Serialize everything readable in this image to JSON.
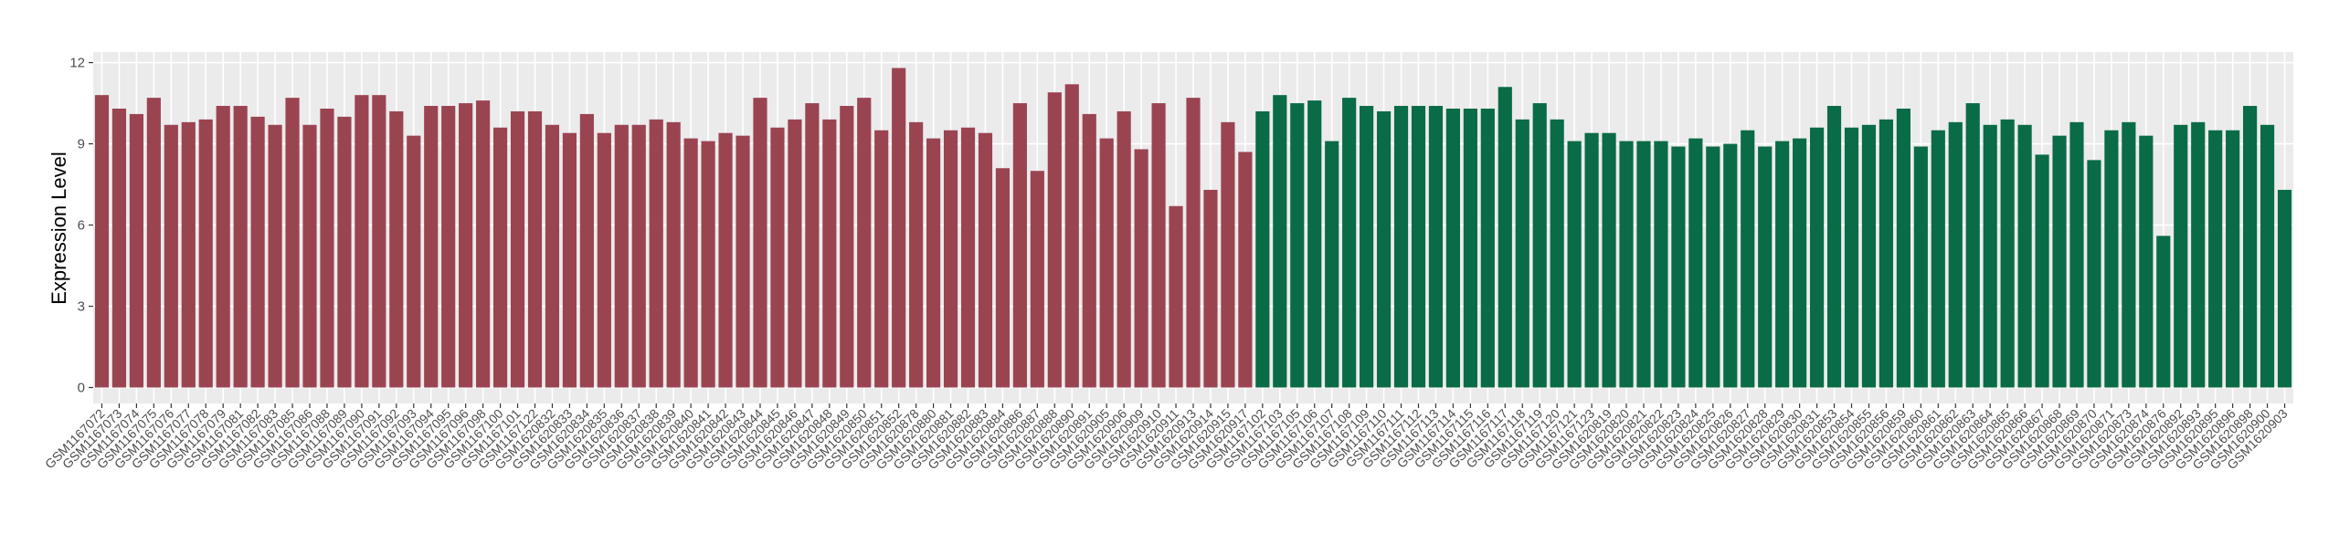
{
  "chart_data": {
    "type": "bar",
    "y_label": "Expression Level",
    "categories": [
      "GSM1167072",
      "GSM1167073",
      "GSM1167074",
      "GSM1167075",
      "GSM1167076",
      "GSM1167077",
      "GSM1167078",
      "GSM1167079",
      "GSM1167081",
      "GSM1167082",
      "GSM1167083",
      "GSM1167085",
      "GSM1167086",
      "GSM1167088",
      "GSM1167089",
      "GSM1167090",
      "GSM1167091",
      "GSM1167092",
      "GSM1167093",
      "GSM1167094",
      "GSM1167095",
      "GSM1167096",
      "GSM1167098",
      "GSM1167100",
      "GSM1167101",
      "GSM1167122",
      "GSM1620832",
      "GSM1620833",
      "GSM1620834",
      "GSM1620835",
      "GSM1620836",
      "GSM1620837",
      "GSM1620838",
      "GSM1620839",
      "GSM1620840",
      "GSM1620841",
      "GSM1620842",
      "GSM1620843",
      "GSM1620844",
      "GSM1620845",
      "GSM1620846",
      "GSM1620847",
      "GSM1620848",
      "GSM1620849",
      "GSM1620850",
      "GSM1620851",
      "GSM1620852",
      "GSM1620878",
      "GSM1620880",
      "GSM1620881",
      "GSM1620882",
      "GSM1620883",
      "GSM1620884",
      "GSM1620886",
      "GSM1620887",
      "GSM1620888",
      "GSM1620890",
      "GSM1620891",
      "GSM1620905",
      "GSM1620906",
      "GSM1620909",
      "GSM1620910",
      "GSM1620911",
      "GSM1620913",
      "GSM1620914",
      "GSM1620915",
      "GSM1620917",
      "GSM1167102",
      "GSM1167103",
      "GSM1167105",
      "GSM1167106",
      "GSM1167107",
      "GSM1167108",
      "GSM1167109",
      "GSM1167110",
      "GSM1167111",
      "GSM1167112",
      "GSM1167113",
      "GSM1167114",
      "GSM1167115",
      "GSM1167116",
      "GSM1167117",
      "GSM1167118",
      "GSM1167119",
      "GSM1167120",
      "GSM1167121",
      "GSM1167123",
      "GSM1620819",
      "GSM1620820",
      "GSM1620821",
      "GSM1620822",
      "GSM1620823",
      "GSM1620824",
      "GSM1620825",
      "GSM1620826",
      "GSM1620827",
      "GSM1620828",
      "GSM1620829",
      "GSM1620830",
      "GSM1620831",
      "GSM1620853",
      "GSM1620854",
      "GSM1620855",
      "GSM1620856",
      "GSM1620859",
      "GSM1620860",
      "GSM1620861",
      "GSM1620862",
      "GSM1620863",
      "GSM1620864",
      "GSM1620865",
      "GSM1620866",
      "GSM1620867",
      "GSM1620868",
      "GSM1620869",
      "GSM1620870",
      "GSM1620871",
      "GSM1620873",
      "GSM1620874",
      "GSM1620876",
      "GSM1620892",
      "GSM1620893",
      "GSM1620895",
      "GSM1620896",
      "GSM1620898",
      "GSM1620900",
      "GSM1620903"
    ],
    "values": [
      10.8,
      10.3,
      10.1,
      10.7,
      9.7,
      9.8,
      9.9,
      10.4,
      10.4,
      10.0,
      9.7,
      10.7,
      9.7,
      10.3,
      10.0,
      10.8,
      10.8,
      10.2,
      9.3,
      10.4,
      10.4,
      10.5,
      10.6,
      9.6,
      10.2,
      10.2,
      9.7,
      9.4,
      10.1,
      9.4,
      9.7,
      9.7,
      9.9,
      9.8,
      9.2,
      9.1,
      9.4,
      9.3,
      10.7,
      9.6,
      9.9,
      10.5,
      9.9,
      10.4,
      10.7,
      9.5,
      11.8,
      9.8,
      9.2,
      9.5,
      9.6,
      9.4,
      8.1,
      10.5,
      8.0,
      10.9,
      11.2,
      10.1,
      9.2,
      10.2,
      8.8,
      10.5,
      6.7,
      10.7,
      7.3,
      9.8,
      8.7,
      10.2,
      10.8,
      10.5,
      10.6,
      9.1,
      10.7,
      10.4,
      10.2,
      10.4,
      10.4,
      10.4,
      10.3,
      10.3,
      10.3,
      11.1,
      9.9,
      10.5,
      9.9,
      9.1,
      9.4,
      9.4,
      9.1,
      9.1,
      9.1,
      8.9,
      9.2,
      8.9,
      9.0,
      9.5,
      8.9,
      9.1,
      9.2,
      9.6,
      10.4,
      9.6,
      9.7,
      9.9,
      10.3,
      8.9,
      9.5,
      9.8,
      10.5,
      9.7,
      9.9,
      9.7,
      8.6,
      9.3,
      9.8,
      8.4,
      9.5,
      9.8,
      9.3,
      5.6,
      9.7,
      9.8,
      9.5,
      9.5,
      10.4,
      9.7,
      7.3
    ],
    "colors": [
      "#9b4451",
      "#9b4451",
      "#9b4451",
      "#9b4451",
      "#9b4451",
      "#9b4451",
      "#9b4451",
      "#9b4451",
      "#9b4451",
      "#9b4451",
      "#9b4451",
      "#9b4451",
      "#9b4451",
      "#9b4451",
      "#9b4451",
      "#9b4451",
      "#9b4451",
      "#9b4451",
      "#9b4451",
      "#9b4451",
      "#9b4451",
      "#9b4451",
      "#9b4451",
      "#9b4451",
      "#9b4451",
      "#9b4451",
      "#9b4451",
      "#9b4451",
      "#9b4451",
      "#9b4451",
      "#9b4451",
      "#9b4451",
      "#9b4451",
      "#9b4451",
      "#9b4451",
      "#9b4451",
      "#9b4451",
      "#9b4451",
      "#9b4451",
      "#9b4451",
      "#9b4451",
      "#9b4451",
      "#9b4451",
      "#9b4451",
      "#9b4451",
      "#9b4451",
      "#9b4451",
      "#9b4451",
      "#9b4451",
      "#9b4451",
      "#9b4451",
      "#9b4451",
      "#9b4451",
      "#9b4451",
      "#9b4451",
      "#9b4451",
      "#9b4451",
      "#9b4451",
      "#9b4451",
      "#9b4451",
      "#9b4451",
      "#9b4451",
      "#9b4451",
      "#9b4451",
      "#9b4451",
      "#9b4451",
      "#9b4451",
      "#0a6b47",
      "#0a6b47",
      "#0a6b47",
      "#0a6b47",
      "#0a6b47",
      "#0a6b47",
      "#0a6b47",
      "#0a6b47",
      "#0a6b47",
      "#0a6b47",
      "#0a6b47",
      "#0a6b47",
      "#0a6b47",
      "#0a6b47",
      "#0a6b47",
      "#0a6b47",
      "#0a6b47",
      "#0a6b47",
      "#0a6b47",
      "#0a6b47",
      "#0a6b47",
      "#0a6b47",
      "#0a6b47",
      "#0a6b47",
      "#0a6b47",
      "#0a6b47",
      "#0a6b47",
      "#0a6b47",
      "#0a6b47",
      "#0a6b47",
      "#0a6b47",
      "#0a6b47",
      "#0a6b47",
      "#0a6b47",
      "#0a6b47",
      "#0a6b47",
      "#0a6b47",
      "#0a6b47",
      "#0a6b47",
      "#0a6b47",
      "#0a6b47",
      "#0a6b47",
      "#0a6b47",
      "#0a6b47",
      "#0a6b47",
      "#0a6b47",
      "#0a6b47",
      "#0a6b47",
      "#0a6b47",
      "#0a6b47",
      "#0a6b47",
      "#0a6b47",
      "#0a6b47",
      "#0a6b47",
      "#0a6b47",
      "#0a6b47",
      "#0a6b47",
      "#0a6b47",
      "#0a6b47",
      "#0a6b47"
    ],
    "ylim": [
      -0.59,
      12.39
    ],
    "yticks": [
      0,
      3,
      6,
      9,
      12
    ],
    "grid": true
  }
}
